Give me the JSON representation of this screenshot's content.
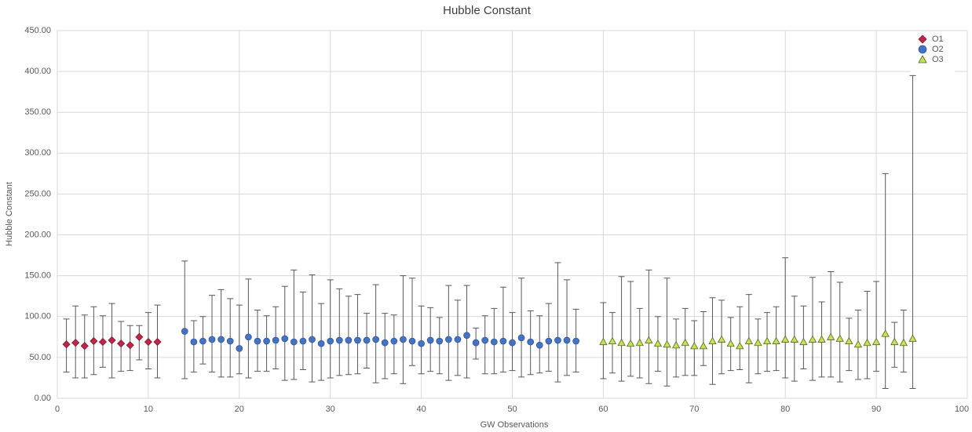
{
  "chart_data": {
    "type": "scatter",
    "title": "Hubble Constant",
    "x_label": "GW Observations",
    "y_label": "Hubble Constant",
    "xlim": [
      0,
      100
    ],
    "ylim": [
      0,
      450
    ],
    "xticks": [
      0,
      10,
      20,
      30,
      40,
      50,
      60,
      70,
      80,
      90,
      100
    ],
    "yticks": [
      {
        "value": 0,
        "label": "0.00"
      },
      {
        "value": 50,
        "label": "50.00"
      },
      {
        "value": 100,
        "label": "100.00"
      },
      {
        "value": 150,
        "label": "150.00"
      },
      {
        "value": 200,
        "label": "200.00"
      },
      {
        "value": 250,
        "label": "250.00"
      },
      {
        "value": 300,
        "label": "300.00"
      },
      {
        "value": 350,
        "label": "350.00"
      },
      {
        "value": 400,
        "label": "400.00"
      },
      {
        "value": 450,
        "label": "450.00"
      }
    ],
    "grid": true,
    "legend": "upper right",
    "series": [
      {
        "name": "O1",
        "color": "#c0264a",
        "marker": "diamond",
        "x": [
          1,
          2,
          3,
          4,
          5,
          6,
          7,
          8,
          9,
          10,
          11
        ],
        "values": [
          66,
          68,
          64,
          70,
          69,
          71,
          67,
          65,
          75,
          69,
          69
        ],
        "low": [
          32,
          25,
          25,
          29,
          38,
          25,
          33,
          34,
          47,
          36,
          25
        ],
        "high": [
          97,
          113,
          102,
          112,
          101,
          116,
          94,
          89,
          89,
          105,
          114
        ]
      },
      {
        "name": "O2",
        "color": "#4472c4",
        "marker": "circle",
        "x": [
          14,
          15,
          16,
          17,
          18,
          19,
          20,
          21,
          22,
          23,
          24,
          25,
          26,
          27,
          28,
          29,
          30,
          31,
          32,
          33,
          34,
          35,
          36,
          37,
          38,
          39,
          40,
          41,
          42,
          43,
          44,
          45,
          46,
          47,
          48,
          49,
          50,
          51,
          52,
          53,
          54,
          55,
          56,
          57
        ],
        "values": [
          82,
          69,
          70,
          72,
          72,
          70,
          61,
          75,
          70,
          70,
          71,
          73,
          69,
          70,
          72,
          67,
          70,
          71,
          71,
          71,
          71,
          72,
          68,
          70,
          72,
          70,
          67,
          71,
          70,
          72,
          72,
          77,
          68,
          71,
          69,
          70,
          68,
          74,
          69,
          65,
          70,
          71,
          71,
          70
        ],
        "low": [
          24,
          32,
          42,
          32,
          26,
          26,
          30,
          25,
          33,
          33,
          36,
          22,
          23,
          35,
          20,
          22,
          25,
          28,
          29,
          30,
          37,
          19,
          24,
          30,
          18,
          40,
          30,
          33,
          30,
          22,
          28,
          25,
          48,
          30,
          30,
          32,
          34,
          26,
          29,
          31,
          33,
          20,
          28,
          32
        ],
        "high": [
          168,
          95,
          100,
          126,
          133,
          122,
          114,
          146,
          108,
          101,
          112,
          137,
          157,
          130,
          151,
          116,
          145,
          134,
          125,
          127,
          104,
          139,
          104,
          102,
          150,
          147,
          113,
          111,
          99,
          138,
          120,
          138,
          86,
          101,
          110,
          136,
          105,
          147,
          107,
          101,
          116,
          166,
          145,
          109
        ]
      },
      {
        "name": "O3",
        "color": "#c9e05a",
        "marker": "triangle",
        "x": [
          60,
          61,
          62,
          63,
          64,
          65,
          66,
          67,
          68,
          69,
          70,
          71,
          72,
          73,
          74,
          75,
          76,
          77,
          78,
          79,
          80,
          81,
          82,
          83,
          84,
          85,
          86,
          87,
          88,
          89,
          90,
          91,
          92,
          93,
          94
        ],
        "values": [
          69,
          70,
          68,
          67,
          68,
          71,
          67,
          66,
          65,
          68,
          64,
          64,
          70,
          72,
          67,
          64,
          70,
          68,
          70,
          70,
          72,
          72,
          69,
          72,
          72,
          75,
          73,
          70,
          66,
          68,
          69,
          79,
          69,
          68,
          73
        ],
        "low": [
          24,
          31,
          21,
          27,
          25,
          18,
          33,
          15,
          26,
          28,
          28,
          40,
          17,
          30,
          34,
          35,
          19,
          30,
          33,
          34,
          25,
          21,
          36,
          22,
          26,
          26,
          20,
          34,
          23,
          24,
          33,
          12,
          38,
          32,
          12
        ],
        "high": [
          117,
          105,
          149,
          143,
          110,
          157,
          100,
          147,
          97,
          110,
          95,
          106,
          123,
          120,
          99,
          112,
          127,
          97,
          105,
          112,
          172,
          125,
          113,
          148,
          118,
          155,
          142,
          98,
          108,
          131,
          143,
          275,
          93,
          108,
          395
        ]
      }
    ]
  }
}
